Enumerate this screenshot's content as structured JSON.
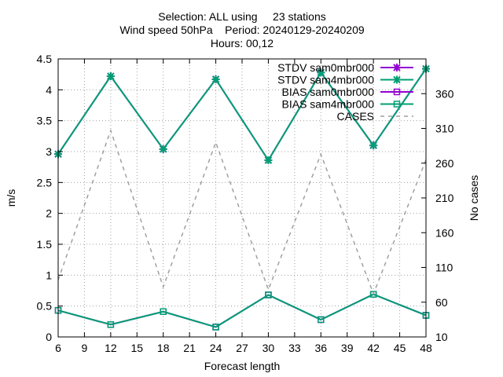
{
  "chart_data": {
    "type": "line",
    "title_lines": [
      "Selection: ALL using     23 stations",
      "Wind speed 50hPa    Period: 20240129-20240209",
      "Hours: 00,12"
    ],
    "xlabel": "Forecast length",
    "ylabel": "m/s",
    "y2label": "No cases",
    "x": [
      6,
      12,
      18,
      24,
      30,
      36,
      42,
      48
    ],
    "xticks": [
      6,
      9,
      12,
      15,
      18,
      21,
      24,
      27,
      30,
      33,
      36,
      39,
      42,
      45,
      48
    ],
    "xlim": [
      6,
      48
    ],
    "ylim": [
      0,
      4.5
    ],
    "yticks": [
      0,
      0.5,
      1,
      1.5,
      2,
      2.5,
      3,
      3.5,
      4,
      4.5
    ],
    "y2lim": [
      10,
      410
    ],
    "y2ticks": [
      10,
      60,
      110,
      160,
      210,
      260,
      310,
      360
    ],
    "grid": true,
    "legend_position": "top-right",
    "series": [
      {
        "name": "STDV sam0mbr000",
        "axis": "y",
        "color": "#9400d3",
        "marker": "x",
        "values": [
          2.96,
          4.22,
          3.04,
          4.17,
          2.86,
          4.28,
          3.1,
          4.34
        ]
      },
      {
        "name": "STDV sam4mbr000",
        "axis": "y",
        "color": "#009e73",
        "marker": "x",
        "values": [
          2.96,
          4.22,
          3.04,
          4.17,
          2.86,
          4.28,
          3.1,
          4.34
        ]
      },
      {
        "name": "BIAS sam0mbr000",
        "axis": "y",
        "color": "#9400d3",
        "marker": "square",
        "values": [
          0.43,
          0.2,
          0.41,
          0.16,
          0.68,
          0.28,
          0.69,
          0.35
        ]
      },
      {
        "name": "BIAS sam4mbr000",
        "axis": "y",
        "color": "#009e73",
        "marker": "square",
        "values": [
          0.43,
          0.2,
          0.41,
          0.16,
          0.68,
          0.28,
          0.69,
          0.35
        ]
      },
      {
        "name": "CASES",
        "axis": "y2",
        "color": "#a0a0a0",
        "marker": "none",
        "dashed": true,
        "values": [
          92,
          307,
          82,
          290,
          78,
          273,
          72,
          265
        ]
      }
    ]
  }
}
